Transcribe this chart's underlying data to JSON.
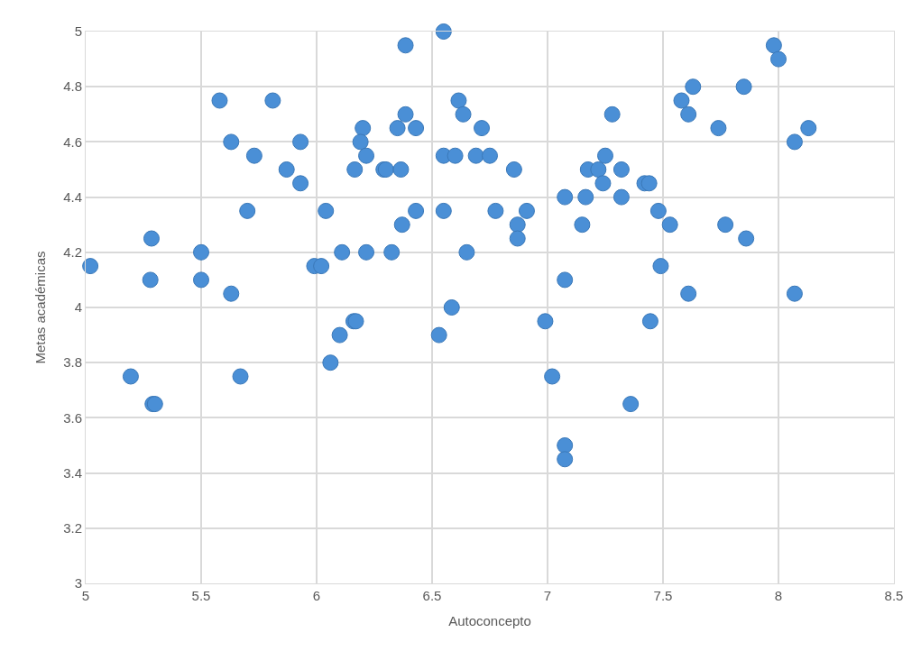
{
  "chart_data": {
    "type": "scatter",
    "xlabel": "Autoconcepto",
    "ylabel": "Metas académicas",
    "x": [
      5.02,
      5.285,
      5.28,
      5.5,
      5.5,
      5.63,
      5.195,
      5.29,
      5.3,
      5.67,
      5.99,
      6.02,
      6.11,
      6.16,
      6.1,
      6.06,
      5.58,
      5.81,
      5.63,
      5.93,
      5.73,
      5.87,
      5.93,
      5.7,
      6.04,
      6.55,
      6.385,
      6.615,
      6.635,
      6.715,
      7.28,
      6.385,
      6.35,
      6.43,
      6.2,
      6.19,
      6.215,
      6.165,
      6.29,
      6.3,
      6.365,
      6.55,
      6.6,
      6.69,
      6.75,
      6.855,
      7.25,
      7.175,
      7.22,
      7.32,
      7.24,
      7.075,
      7.165,
      7.32,
      7.15,
      6.43,
      6.37,
      6.55,
      6.775,
      6.91,
      6.87,
      6.87,
      6.215,
      6.325,
      6.65,
      7.075,
      6.585,
      6.17,
      6.53,
      6.99,
      7.02,
      7.36,
      7.075,
      7.075,
      7.98,
      8.0,
      7.63,
      7.85,
      7.58,
      7.61,
      7.74,
      8.13,
      8.07,
      7.42,
      7.44,
      7.48,
      7.53,
      7.77,
      7.86,
      7.49,
      7.61,
      8.07,
      7.445
    ],
    "series": [
      {
        "color": "#4a8fd6",
        "values": [
          4.15,
          4.25,
          4.1,
          4.2,
          4.1,
          4.05,
          3.75,
          3.65,
          3.65,
          3.75,
          4.15,
          4.15,
          4.2,
          3.95,
          3.9,
          3.8,
          4.75,
          4.75,
          4.6,
          4.6,
          4.55,
          4.5,
          4.45,
          4.35,
          4.35,
          5.0,
          4.95,
          4.75,
          4.7,
          4.65,
          4.7,
          4.7,
          4.65,
          4.65,
          4.65,
          4.6,
          4.55,
          4.5,
          4.5,
          4.5,
          4.5,
          4.55,
          4.55,
          4.55,
          4.55,
          4.5,
          4.55,
          4.5,
          4.5,
          4.5,
          4.45,
          4.4,
          4.4,
          4.4,
          4.3,
          4.35,
          4.3,
          4.35,
          4.35,
          4.35,
          4.3,
          4.25,
          4.2,
          4.2,
          4.2,
          4.1,
          4.0,
          3.95,
          3.9,
          3.95,
          3.75,
          3.65,
          3.5,
          3.45,
          4.95,
          4.9,
          4.8,
          4.8,
          4.75,
          4.7,
          4.65,
          4.65,
          4.6,
          4.45,
          4.45,
          4.35,
          4.3,
          4.3,
          4.25,
          4.15,
          4.05,
          4.05,
          3.95
        ]
      }
    ],
    "xlim": [
      5,
      8.5
    ],
    "xticks": [
      5,
      5.5,
      6,
      6.5,
      7,
      7.5,
      8,
      8.5
    ],
    "ylim": [
      3,
      5
    ],
    "yticks": [
      3,
      3.2,
      3.4,
      3.6,
      3.8,
      4,
      4.2,
      4.4,
      4.6,
      4.8,
      5
    ],
    "grid": true,
    "marker": "circle"
  }
}
